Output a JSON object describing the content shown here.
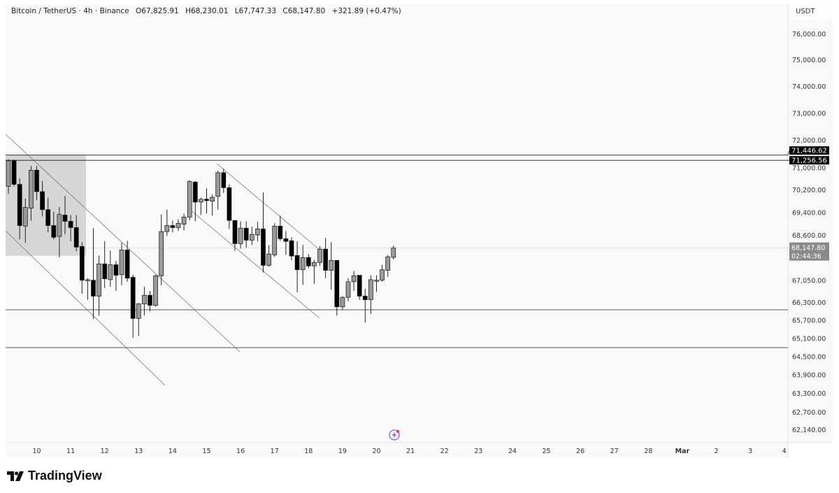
{
  "header": {
    "symbol": "Bitcoin / TetherUS · 4h · Binance",
    "open": "O67,825.91",
    "high": "H68,230.01",
    "low": "L67,747.33",
    "close": "C68,147.80",
    "change": "+321.89 (+0.47%)"
  },
  "currency": "USDT",
  "brand": "TradingView",
  "colors": {
    "up": "#9a9a9a",
    "down": "#000000",
    "background": "#f9f9f9",
    "price_label": "#8a8a8a",
    "alert_icon": "#a64fd6"
  },
  "chart_data": {
    "type": "candlestick",
    "interval": "4h",
    "scale": "log",
    "ylim": [
      62000,
      76600
    ],
    "grid": false,
    "y_ticks": [
      "76,000.00",
      "75,000.00",
      "74,000.00",
      "73,000.00",
      "72,000.00",
      "71,000.00",
      "70,200.00",
      "69,400.00",
      "68,600.00",
      "67,050.00",
      "66,300.00",
      "65,700.00",
      "65,100.00",
      "64,500.00",
      "63,900.00",
      "63,300.00",
      "62,700.00",
      "62,140.00"
    ],
    "x_ticks": [
      "10",
      "11",
      "12",
      "13",
      "14",
      "15",
      "16",
      "17",
      "18",
      "19",
      "20",
      "21",
      "22",
      "23",
      "24",
      "25",
      "26",
      "27",
      "28",
      "Mar",
      "2",
      "3",
      "4"
    ],
    "ohlc_columns": [
      "open",
      "high",
      "low",
      "close"
    ],
    "candles": [
      [
        70320,
        71290,
        70050,
        71240
      ],
      [
        71240,
        71290,
        70320,
        70390
      ],
      [
        70390,
        70610,
        68450,
        68930
      ],
      [
        68910,
        69880,
        68330,
        69570
      ],
      [
        69540,
        71050,
        69100,
        70900
      ],
      [
        70900,
        71050,
        69830,
        70130
      ],
      [
        70130,
        70510,
        69250,
        69490
      ],
      [
        69490,
        69910,
        68690,
        68930
      ],
      [
        68930,
        69420,
        68450,
        68520
      ],
      [
        68550,
        69590,
        67820,
        69320
      ],
      [
        69300,
        69980,
        68620,
        69080
      ],
      [
        69080,
        69300,
        68380,
        68860
      ],
      [
        68860,
        69300,
        68040,
        68180
      ],
      [
        68200,
        68350,
        66580,
        67040
      ],
      [
        67040,
        67110,
        66380,
        67060
      ],
      [
        67040,
        68840,
        65730,
        66500
      ],
      [
        66500,
        67890,
        65850,
        67600
      ],
      [
        67600,
        68380,
        66770,
        67090
      ],
      [
        67060,
        68060,
        66820,
        67570
      ],
      [
        67570,
        67700,
        66680,
        67210
      ],
      [
        67230,
        68330,
        66870,
        68080
      ],
      [
        68080,
        68400,
        66990,
        67110
      ],
      [
        67140,
        67230,
        65100,
        65750
      ],
      [
        65750,
        66260,
        65170,
        66240
      ],
      [
        66240,
        66820,
        65850,
        66530
      ],
      [
        66530,
        66680,
        65990,
        66190
      ],
      [
        66190,
        67230,
        66140,
        67190
      ],
      [
        67190,
        69320,
        66870,
        68720
      ],
      [
        68720,
        69490,
        68570,
        68930
      ],
      [
        68930,
        69110,
        68690,
        68860
      ],
      [
        68860,
        69150,
        68740,
        69010
      ],
      [
        68980,
        69350,
        68760,
        69230
      ],
      [
        69230,
        70540,
        69110,
        70490
      ],
      [
        70470,
        70510,
        69080,
        69760
      ],
      [
        69760,
        69910,
        69300,
        69860
      ],
      [
        69860,
        70250,
        69350,
        69810
      ],
      [
        69790,
        70030,
        69280,
        69930
      ],
      [
        69960,
        70880,
        69490,
        70810
      ],
      [
        70810,
        70950,
        70080,
        70270
      ],
      [
        70270,
        70390,
        68810,
        69110
      ],
      [
        69110,
        69110,
        68040,
        68300
      ],
      [
        68300,
        69080,
        68130,
        68840
      ],
      [
        68840,
        69080,
        68160,
        68420
      ],
      [
        68420,
        68890,
        68250,
        68620
      ],
      [
        68600,
        69060,
        68380,
        68810
      ],
      [
        68810,
        70100,
        67310,
        67550
      ],
      [
        67550,
        68250,
        67500,
        67940
      ],
      [
        67910,
        69010,
        67840,
        68910
      ],
      [
        68910,
        69280,
        68400,
        68470
      ],
      [
        68470,
        68740,
        67910,
        68380
      ],
      [
        68400,
        68520,
        67720,
        67870
      ],
      [
        67890,
        68380,
        66630,
        67400
      ],
      [
        67400,
        68250,
        66890,
        67820
      ],
      [
        67820,
        67940,
        67450,
        67530
      ],
      [
        67530,
        67740,
        66920,
        67650
      ],
      [
        67650,
        68210,
        67530,
        68110
      ],
      [
        68110,
        68500,
        67110,
        67380
      ],
      [
        67380,
        68350,
        66720,
        67720
      ],
      [
        67720,
        67720,
        65850,
        66140
      ],
      [
        66140,
        66500,
        66040,
        66460
      ],
      [
        66460,
        67110,
        66330,
        66990
      ],
      [
        66990,
        67360,
        66680,
        67190
      ],
      [
        67210,
        67210,
        66380,
        66500
      ],
      [
        66500,
        66750,
        65610,
        66380
      ],
      [
        66380,
        67210,
        65900,
        67060
      ],
      [
        67020,
        67210,
        66650,
        67040
      ],
      [
        67040,
        67570,
        66990,
        67400
      ],
      [
        67380,
        67910,
        67160,
        67840
      ],
      [
        67825.91,
        68230.01,
        67747.33,
        68147.8
      ]
    ],
    "levels": [
      {
        "price": 71446.62,
        "label": "71,446.62"
      },
      {
        "price": 71256.56,
        "label": "71,256.56"
      }
    ],
    "last_price": {
      "price": 68147.8,
      "label": "68,147.80",
      "countdown": "02:44:36"
    }
  }
}
